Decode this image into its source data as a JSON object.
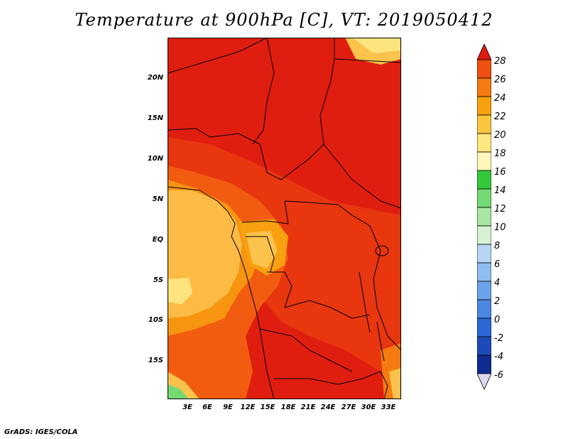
{
  "title": "Temperature at 900hPa [C], VT: 2019050412",
  "footer": "GrADS: IGES/COLA",
  "map": {
    "latitude_labels": [
      "20N",
      "15N",
      "10N",
      "5N",
      "EQ",
      "5S",
      "10S",
      "15S"
    ],
    "longitude_labels": [
      "3E",
      "6E",
      "9E",
      "12E",
      "15E",
      "18E",
      "21E",
      "24E",
      "27E",
      "30E",
      "33E"
    ],
    "variable": "Temperature",
    "level": "900hPa",
    "units": "C",
    "valid_time": "2019050412"
  },
  "colorbar": {
    "labels": [
      "28",
      "26",
      "24",
      "22",
      "20",
      "18",
      "16",
      "14",
      "12",
      "10",
      "8",
      "6",
      "4",
      "2",
      "0",
      "-2",
      "-4",
      "-6"
    ],
    "colors": [
      "#e11b0f",
      "#f14f0f",
      "#f57a10",
      "#f8a10e",
      "#fbc540",
      "#fde77f",
      "#fff7b8",
      "#36c83c",
      "#74d973",
      "#a7e7a0",
      "#d7f2d3",
      "#b5d7f5",
      "#8fbff0",
      "#6ba3ea",
      "#4a88e3",
      "#2c69d7",
      "#1c4bb9",
      "#0d2c8e",
      "#0a0f5a"
    ]
  }
}
